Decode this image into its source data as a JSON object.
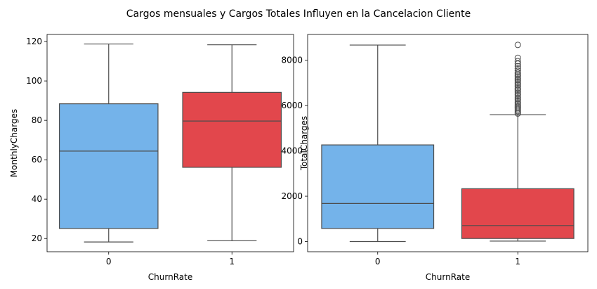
{
  "figure": {
    "title": "Cargos mensuales y Cargos Totales Influyen en la Cancelacion Cliente"
  },
  "colors": {
    "group_0": "#74b3ea",
    "group_1": "#e2474c",
    "lines": "#4d4d4d"
  },
  "chart_data": [
    {
      "type": "box",
      "title": "",
      "xlabel": "ChurnRate",
      "ylabel": "MonthlyCharges",
      "categories": [
        "0",
        "1"
      ],
      "ylim": [
        13.3,
        123.6
      ],
      "yticks": [
        20,
        40,
        60,
        80,
        100,
        120
      ],
      "grid": false,
      "boxes": [
        {
          "category": "0",
          "whislo": 18.25,
          "q1": 25.1,
          "median": 64.4,
          "q3": 88.4,
          "whishi": 118.75,
          "fliers": []
        },
        {
          "category": "1",
          "whislo": 18.85,
          "q1": 56.15,
          "median": 79.65,
          "q3": 94.2,
          "whishi": 118.35,
          "fliers": []
        }
      ]
    },
    {
      "type": "box",
      "title": "",
      "xlabel": "ChurnRate",
      "ylabel": "TotalCharges",
      "categories": [
        "0",
        "1"
      ],
      "ylim": [
        -450,
        9140
      ],
      "yticks": [
        0,
        2000,
        4000,
        6000,
        8000
      ],
      "grid": false,
      "boxes": [
        {
          "category": "0",
          "whislo": 0,
          "q1": 577,
          "median": 1680,
          "q3": 4265,
          "whishi": 8672,
          "fliers": []
        },
        {
          "category": "1",
          "whislo": 19,
          "q1": 134,
          "median": 704,
          "q3": 2331,
          "whishi": 5600,
          "fliers": [
            5650,
            5700,
            5760,
            5820,
            5880,
            5940,
            6000,
            6070,
            6140,
            6210,
            6280,
            6350,
            6420,
            6490,
            6560,
            6630,
            6700,
            6770,
            6840,
            6910,
            6980,
            7050,
            7120,
            7190,
            7260,
            7330,
            7400,
            7470,
            7550,
            7640,
            7740,
            7850,
            7960,
            8110,
            8680
          ]
        }
      ]
    }
  ]
}
